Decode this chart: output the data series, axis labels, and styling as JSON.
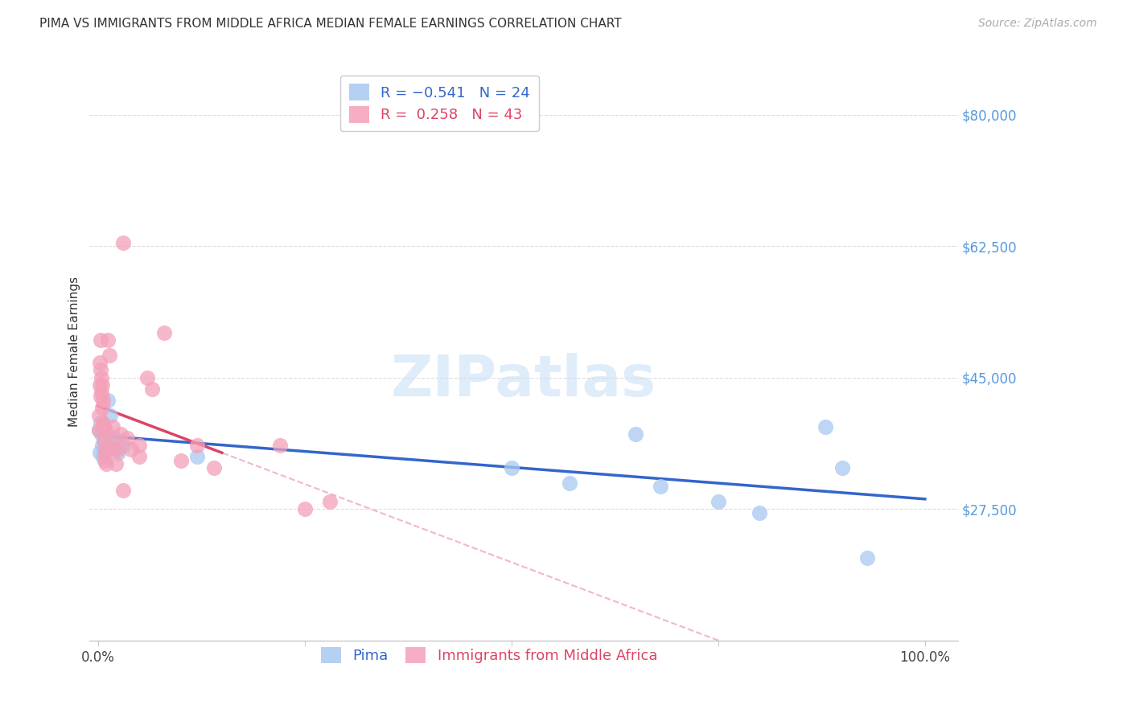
{
  "title": "PIMA VS IMMIGRANTS FROM MIDDLE AFRICA MEDIAN FEMALE EARNINGS CORRELATION CHART",
  "source": "Source: ZipAtlas.com",
  "ylabel": "Median Female Earnings",
  "watermark": "ZIPatlas",
  "pima_color": "#a8c8f0",
  "pink_color": "#f4a0b8",
  "pima_line_color": "#3366cc",
  "pink_line_color": "#dd4466",
  "pink_dash_color": "#f0b0c0",
  "background_color": "#ffffff",
  "grid_color": "#dddddd",
  "ytick_positions": [
    27500,
    45000,
    62500,
    80000
  ],
  "ytick_labels": [
    "$27,500",
    "$45,000",
    "$62,500",
    "$80,000"
  ],
  "ylim_low": 10000,
  "ylim_high": 87000,
  "xlim_low": -0.01,
  "xlim_high": 1.04,
  "pima_x": [
    0.001,
    0.002,
    0.003,
    0.004,
    0.005,
    0.006,
    0.007,
    0.008,
    0.01,
    0.012,
    0.015,
    0.02,
    0.025,
    0.03,
    0.12,
    0.5,
    0.57,
    0.65,
    0.68,
    0.75,
    0.8,
    0.88,
    0.9,
    0.93
  ],
  "pima_y": [
    38000,
    35000,
    39000,
    37500,
    36000,
    34500,
    38500,
    37000,
    36500,
    42000,
    40000,
    37000,
    35000,
    36000,
    34500,
    33000,
    31000,
    37500,
    30500,
    28500,
    27000,
    38500,
    33000,
    21000
  ],
  "pink_x": [
    0.001,
    0.001,
    0.002,
    0.002,
    0.003,
    0.003,
    0.003,
    0.004,
    0.004,
    0.005,
    0.005,
    0.006,
    0.006,
    0.007,
    0.007,
    0.008,
    0.008,
    0.009,
    0.01,
    0.01,
    0.012,
    0.014,
    0.016,
    0.018,
    0.02,
    0.022,
    0.025,
    0.028,
    0.03,
    0.035,
    0.04,
    0.05,
    0.06,
    0.065,
    0.08,
    0.1,
    0.12,
    0.14,
    0.22,
    0.25,
    0.28,
    0.05,
    0.03
  ],
  "pink_y": [
    38000,
    40000,
    44000,
    47000,
    42500,
    46000,
    50000,
    45000,
    43000,
    41000,
    44000,
    42000,
    39000,
    38500,
    36500,
    35000,
    34000,
    38000,
    33500,
    35500,
    50000,
    48000,
    36500,
    38500,
    35500,
    33500,
    35500,
    37500,
    63000,
    37000,
    35500,
    36000,
    45000,
    43500,
    51000,
    34000,
    36000,
    33000,
    36000,
    27500,
    28500,
    34500,
    30000
  ],
  "title_fontsize": 11,
  "source_fontsize": 10,
  "ylabel_fontsize": 11,
  "tick_fontsize": 12,
  "legend_fontsize": 13,
  "watermark_fontsize": 52
}
